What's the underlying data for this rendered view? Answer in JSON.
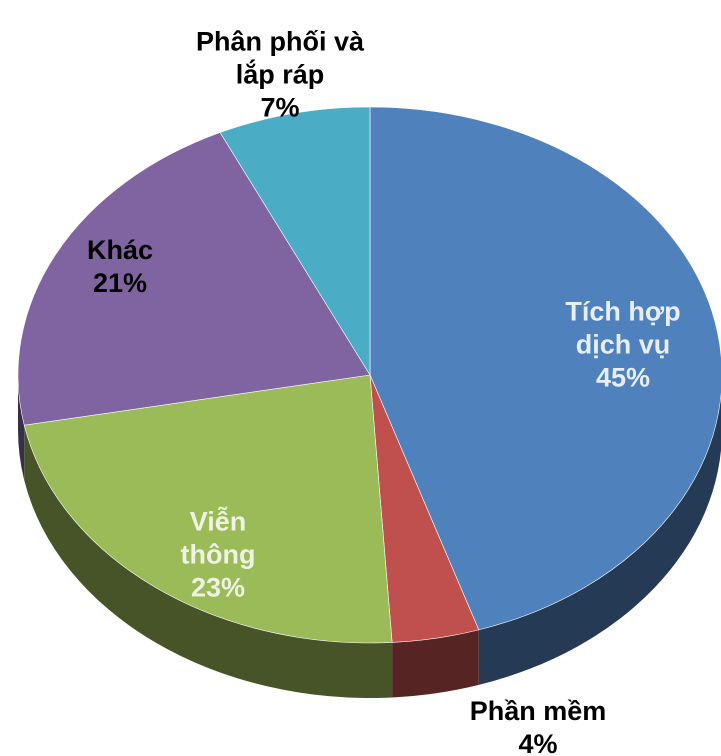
{
  "chart_data": {
    "type": "pie",
    "categories": [
      "Tích hợp dịch vụ",
      "Phần mềm",
      "Viễn thông",
      "Khác",
      "Phân phối và lắp ráp"
    ],
    "values": [
      45,
      4,
      23,
      21,
      7
    ],
    "value_labels": [
      "45%",
      "4%",
      "23%",
      "21%",
      "7%"
    ],
    "colors": [
      "#4f81bd",
      "#c0504d",
      "#9bbb59",
      "#8064a2",
      "#4bacc6"
    ],
    "label_colors": [
      "#e8eef6",
      "#000000",
      "#eef3e4",
      "#000000",
      "#000000"
    ]
  }
}
